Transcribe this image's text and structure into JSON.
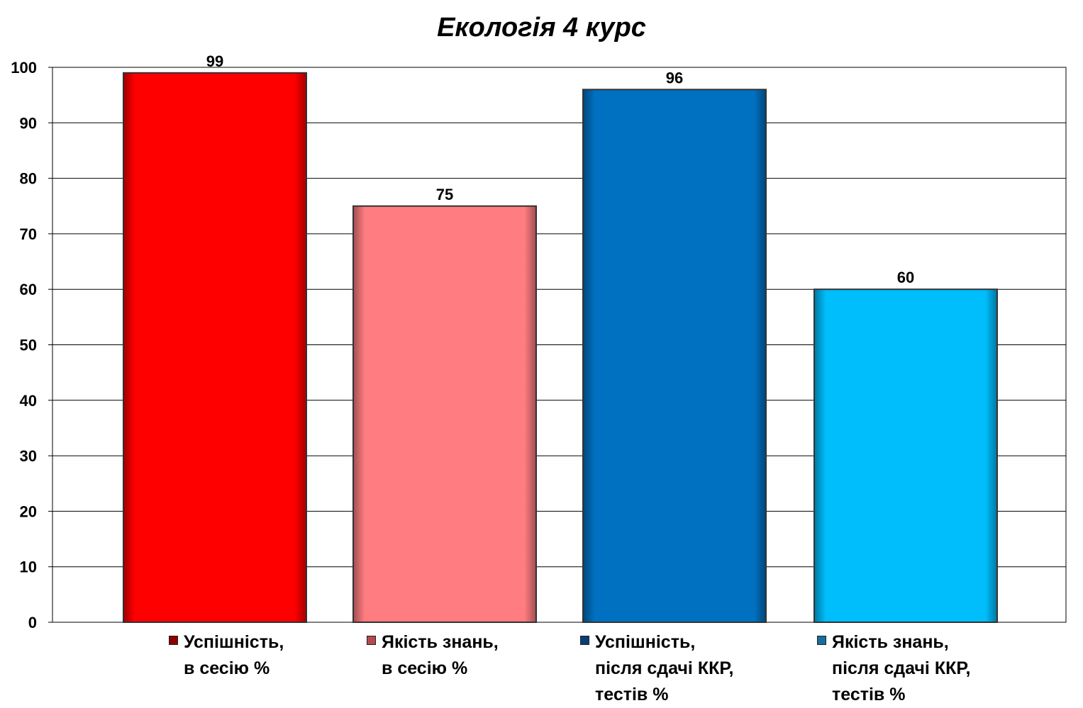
{
  "chart_data": {
    "type": "bar",
    "title": "Екологія 4 курс",
    "xlabel": "",
    "ylabel": "",
    "ylim": [
      0,
      100
    ],
    "yticks": [
      0,
      10,
      20,
      30,
      40,
      50,
      60,
      70,
      80,
      90,
      100
    ],
    "grid": true,
    "legend_position": "bottom",
    "categories": [
      "Успішність, в сесію %",
      "Якість знань, в сесію %",
      "Успішність, після сдачі ККР, тестів %",
      "Якість знань, після сдачі ККР, тестів %"
    ],
    "values": [
      99,
      75,
      96,
      60
    ],
    "data_labels": [
      "99",
      "75",
      "96",
      "60"
    ],
    "colors": [
      "#ff0000",
      "#ff7c80",
      "#0070c0",
      "#00bdfc"
    ],
    "legend": [
      {
        "lines": [
          "Успішність,",
          "в сесію %"
        ],
        "color": "#8b0000"
      },
      {
        "lines": [
          "Якість знань,",
          "в сесію %"
        ],
        "color": "#b34b4b"
      },
      {
        "lines": [
          "Успішність,",
          "після сдачі ККР,",
          "тестів %"
        ],
        "color": "#0a3d7a"
      },
      {
        "lines": [
          "Якість знань,",
          "після сдачі ККР,",
          "тестів %"
        ],
        "color": "#176e9c"
      }
    ]
  }
}
